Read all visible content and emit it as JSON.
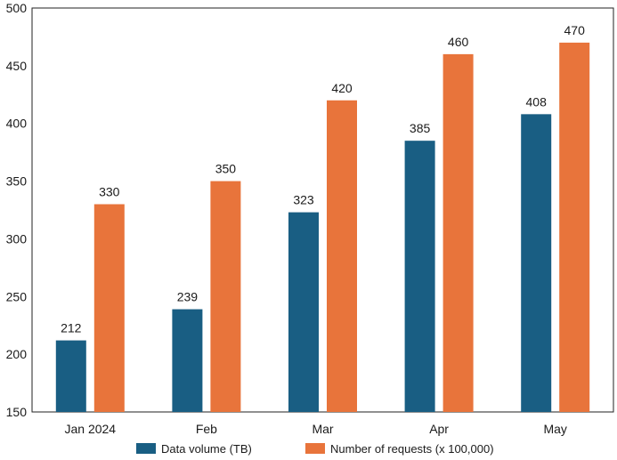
{
  "chart_data": {
    "type": "bar",
    "categories": [
      "Jan 2024",
      "Feb",
      "Mar",
      "Apr",
      "May"
    ],
    "series": [
      {
        "name": "Data volume (TB)",
        "values": [
          212,
          239,
          323,
          385,
          408
        ],
        "color": "#195e83"
      },
      {
        "name": "Number of requests (x 100,000)",
        "values": [
          330,
          350,
          420,
          460,
          470
        ],
        "color": "#e8743b"
      }
    ],
    "ylim": [
      150,
      500
    ],
    "yticks": [
      150,
      200,
      250,
      300,
      350,
      400,
      450,
      500
    ],
    "grid": false,
    "legend_position": "bottom"
  }
}
